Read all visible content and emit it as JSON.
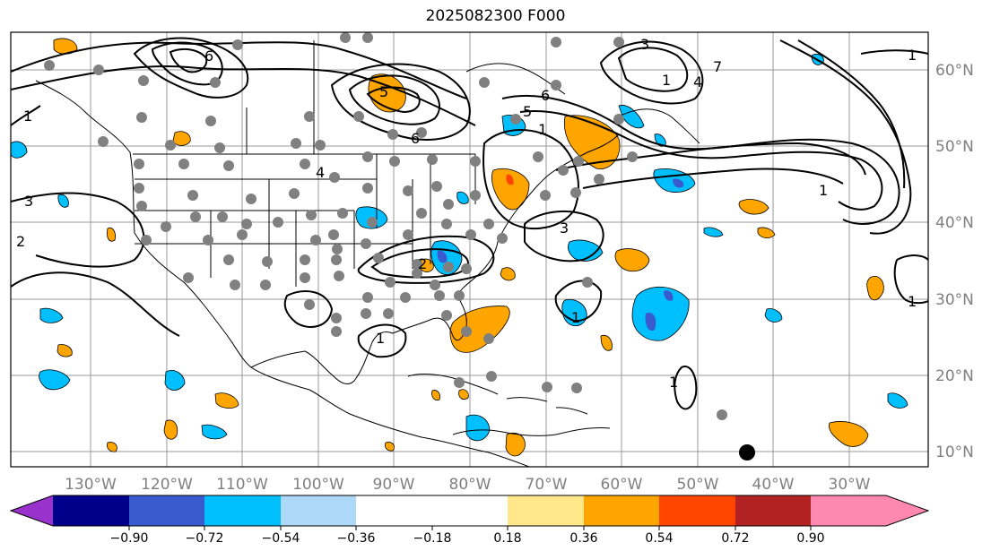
{
  "title": "2025082300 F000",
  "map": {
    "lon_labels": [
      "130°W",
      "120°W",
      "110°W",
      "100°W",
      "90°W",
      "80°W",
      "70°W",
      "60°W",
      "50°W",
      "40°W",
      "30°W"
    ],
    "lat_labels": [
      "60°N",
      "50°N",
      "40°N",
      "30°N",
      "20°N",
      "10°N"
    ],
    "contour_labels": [
      "6",
      "6",
      "5",
      "5",
      "1",
      "3",
      "4",
      "2",
      "3",
      "1",
      "1",
      "1",
      "1",
      "1",
      "1",
      "2",
      "6",
      "3",
      "4",
      "7",
      "1",
      "1"
    ]
  },
  "colorbar": {
    "ticks": [
      "−0.90",
      "−0.72",
      "−0.54",
      "−0.36",
      "−0.18",
      "0.18",
      "0.36",
      "0.54",
      "0.72",
      "0.90"
    ],
    "colors": [
      "#9932cc",
      "#00008b",
      "#3a5bd0",
      "#00bfff",
      "#add8f7",
      "#ffffff",
      "#ffe88a",
      "#ffa500",
      "#ff4500",
      "#b22222",
      "#ff88b0"
    ]
  },
  "colors": {
    "positive": "#ffa500",
    "negative": "#00bfff",
    "strong_negative": "#3a5bd0",
    "station": "#808080",
    "grid": "#9a9a9a"
  }
}
